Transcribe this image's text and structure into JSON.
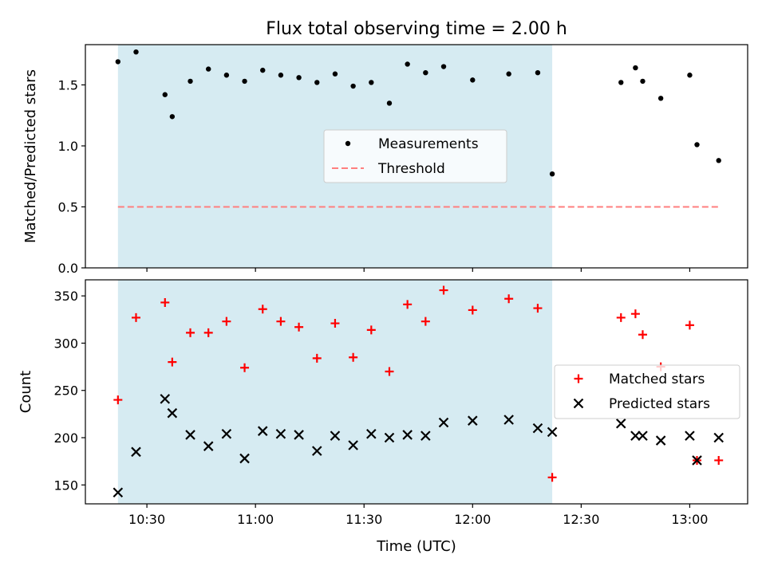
{
  "title": "Flux total observing time = 2.00 h",
  "chart_data": [
    {
      "type": "scatter",
      "ylabel": "Matched/Predicted stars",
      "ylim": [
        0.0,
        1.83
      ],
      "yticks": [
        "0.0",
        "0.5",
        "1.0",
        "1.5"
      ],
      "xlim": [
        "10:13",
        "13:16"
      ],
      "shaded_span": [
        "10:22",
        "12:22"
      ],
      "shade_color": "#add8e6",
      "series": [
        {
          "name": "Measurements",
          "color": "#000000",
          "marker": "dot",
          "points": [
            [
              "10:22",
              1.69
            ],
            [
              "10:27",
              1.77
            ],
            [
              "10:35",
              1.42
            ],
            [
              "10:37",
              1.24
            ],
            [
              "10:42",
              1.53
            ],
            [
              "10:47",
              1.63
            ],
            [
              "10:52",
              1.58
            ],
            [
              "10:57",
              1.53
            ],
            [
              "11:02",
              1.62
            ],
            [
              "11:07",
              1.58
            ],
            [
              "11:12",
              1.56
            ],
            [
              "11:17",
              1.52
            ],
            [
              "11:22",
              1.59
            ],
            [
              "11:27",
              1.49
            ],
            [
              "11:32",
              1.52
            ],
            [
              "11:37",
              1.35
            ],
            [
              "11:42",
              1.67
            ],
            [
              "11:47",
              1.6
            ],
            [
              "11:52",
              1.65
            ],
            [
              "12:00",
              1.54
            ],
            [
              "12:10",
              1.59
            ],
            [
              "12:18",
              1.6
            ],
            [
              "12:22",
              0.77
            ],
            [
              "12:41",
              1.52
            ],
            [
              "12:45",
              1.64
            ],
            [
              "12:47",
              1.53
            ],
            [
              "12:52",
              1.39
            ],
            [
              "13:00",
              1.58
            ],
            [
              "13:02",
              1.01
            ],
            [
              "13:08",
              0.88
            ]
          ]
        },
        {
          "name": "Threshold",
          "color": "#ff7f7f",
          "style": "dashed",
          "points": [
            [
              "10:22",
              0.5
            ],
            [
              "13:08",
              0.5
            ]
          ]
        }
      ],
      "legend": "center"
    },
    {
      "type": "scatter",
      "ylabel": "Count",
      "xlabel": "Time (UTC)",
      "ylim": [
        130,
        367
      ],
      "yticks": [
        "150",
        "200",
        "250",
        "300",
        "350"
      ],
      "xlim": [
        "10:13",
        "13:16"
      ],
      "xticks": [
        "10:30",
        "11:00",
        "11:30",
        "12:00",
        "12:30",
        "13:00"
      ],
      "shaded_span": [
        "10:22",
        "12:22"
      ],
      "shade_color": "#add8e6",
      "series": [
        {
          "name": "Matched stars",
          "color": "#ff0000",
          "marker": "plus",
          "points": [
            [
              "10:22",
              240
            ],
            [
              "10:27",
              327
            ],
            [
              "10:35",
              343
            ],
            [
              "10:37",
              280
            ],
            [
              "10:42",
              311
            ],
            [
              "10:47",
              311
            ],
            [
              "10:52",
              323
            ],
            [
              "10:57",
              274
            ],
            [
              "11:02",
              336
            ],
            [
              "11:07",
              323
            ],
            [
              "11:12",
              317
            ],
            [
              "11:17",
              284
            ],
            [
              "11:22",
              321
            ],
            [
              "11:27",
              285
            ],
            [
              "11:32",
              314
            ],
            [
              "11:37",
              270
            ],
            [
              "11:42",
              341
            ],
            [
              "11:47",
              323
            ],
            [
              "11:52",
              356
            ],
            [
              "12:00",
              335
            ],
            [
              "12:10",
              347
            ],
            [
              "12:18",
              337
            ],
            [
              "12:22",
              158
            ],
            [
              "12:41",
              327
            ],
            [
              "12:45",
              331
            ],
            [
              "12:47",
              309
            ],
            [
              "12:52",
              275
            ],
            [
              "13:00",
              319
            ],
            [
              "13:02",
              176
            ],
            [
              "13:08",
              176
            ]
          ]
        },
        {
          "name": "Predicted stars",
          "color": "#000000",
          "marker": "x",
          "points": [
            [
              "10:22",
              142
            ],
            [
              "10:27",
              185
            ],
            [
              "10:35",
              241
            ],
            [
              "10:37",
              226
            ],
            [
              "10:42",
              203
            ],
            [
              "10:47",
              191
            ],
            [
              "10:52",
              204
            ],
            [
              "10:57",
              178
            ],
            [
              "11:02",
              207
            ],
            [
              "11:07",
              204
            ],
            [
              "11:12",
              203
            ],
            [
              "11:17",
              186
            ],
            [
              "11:22",
              202
            ],
            [
              "11:27",
              192
            ],
            [
              "11:32",
              204
            ],
            [
              "11:37",
              200
            ],
            [
              "11:42",
              203
            ],
            [
              "11:47",
              202
            ],
            [
              "11:52",
              216
            ],
            [
              "12:00",
              218
            ],
            [
              "12:10",
              219
            ],
            [
              "12:18",
              210
            ],
            [
              "12:22",
              206
            ],
            [
              "12:41",
              215
            ],
            [
              "12:45",
              202
            ],
            [
              "12:47",
              202
            ],
            [
              "12:52",
              197
            ],
            [
              "13:00",
              202
            ],
            [
              "13:02",
              176
            ],
            [
              "13:08",
              200
            ]
          ]
        }
      ],
      "legend": "right"
    }
  ]
}
